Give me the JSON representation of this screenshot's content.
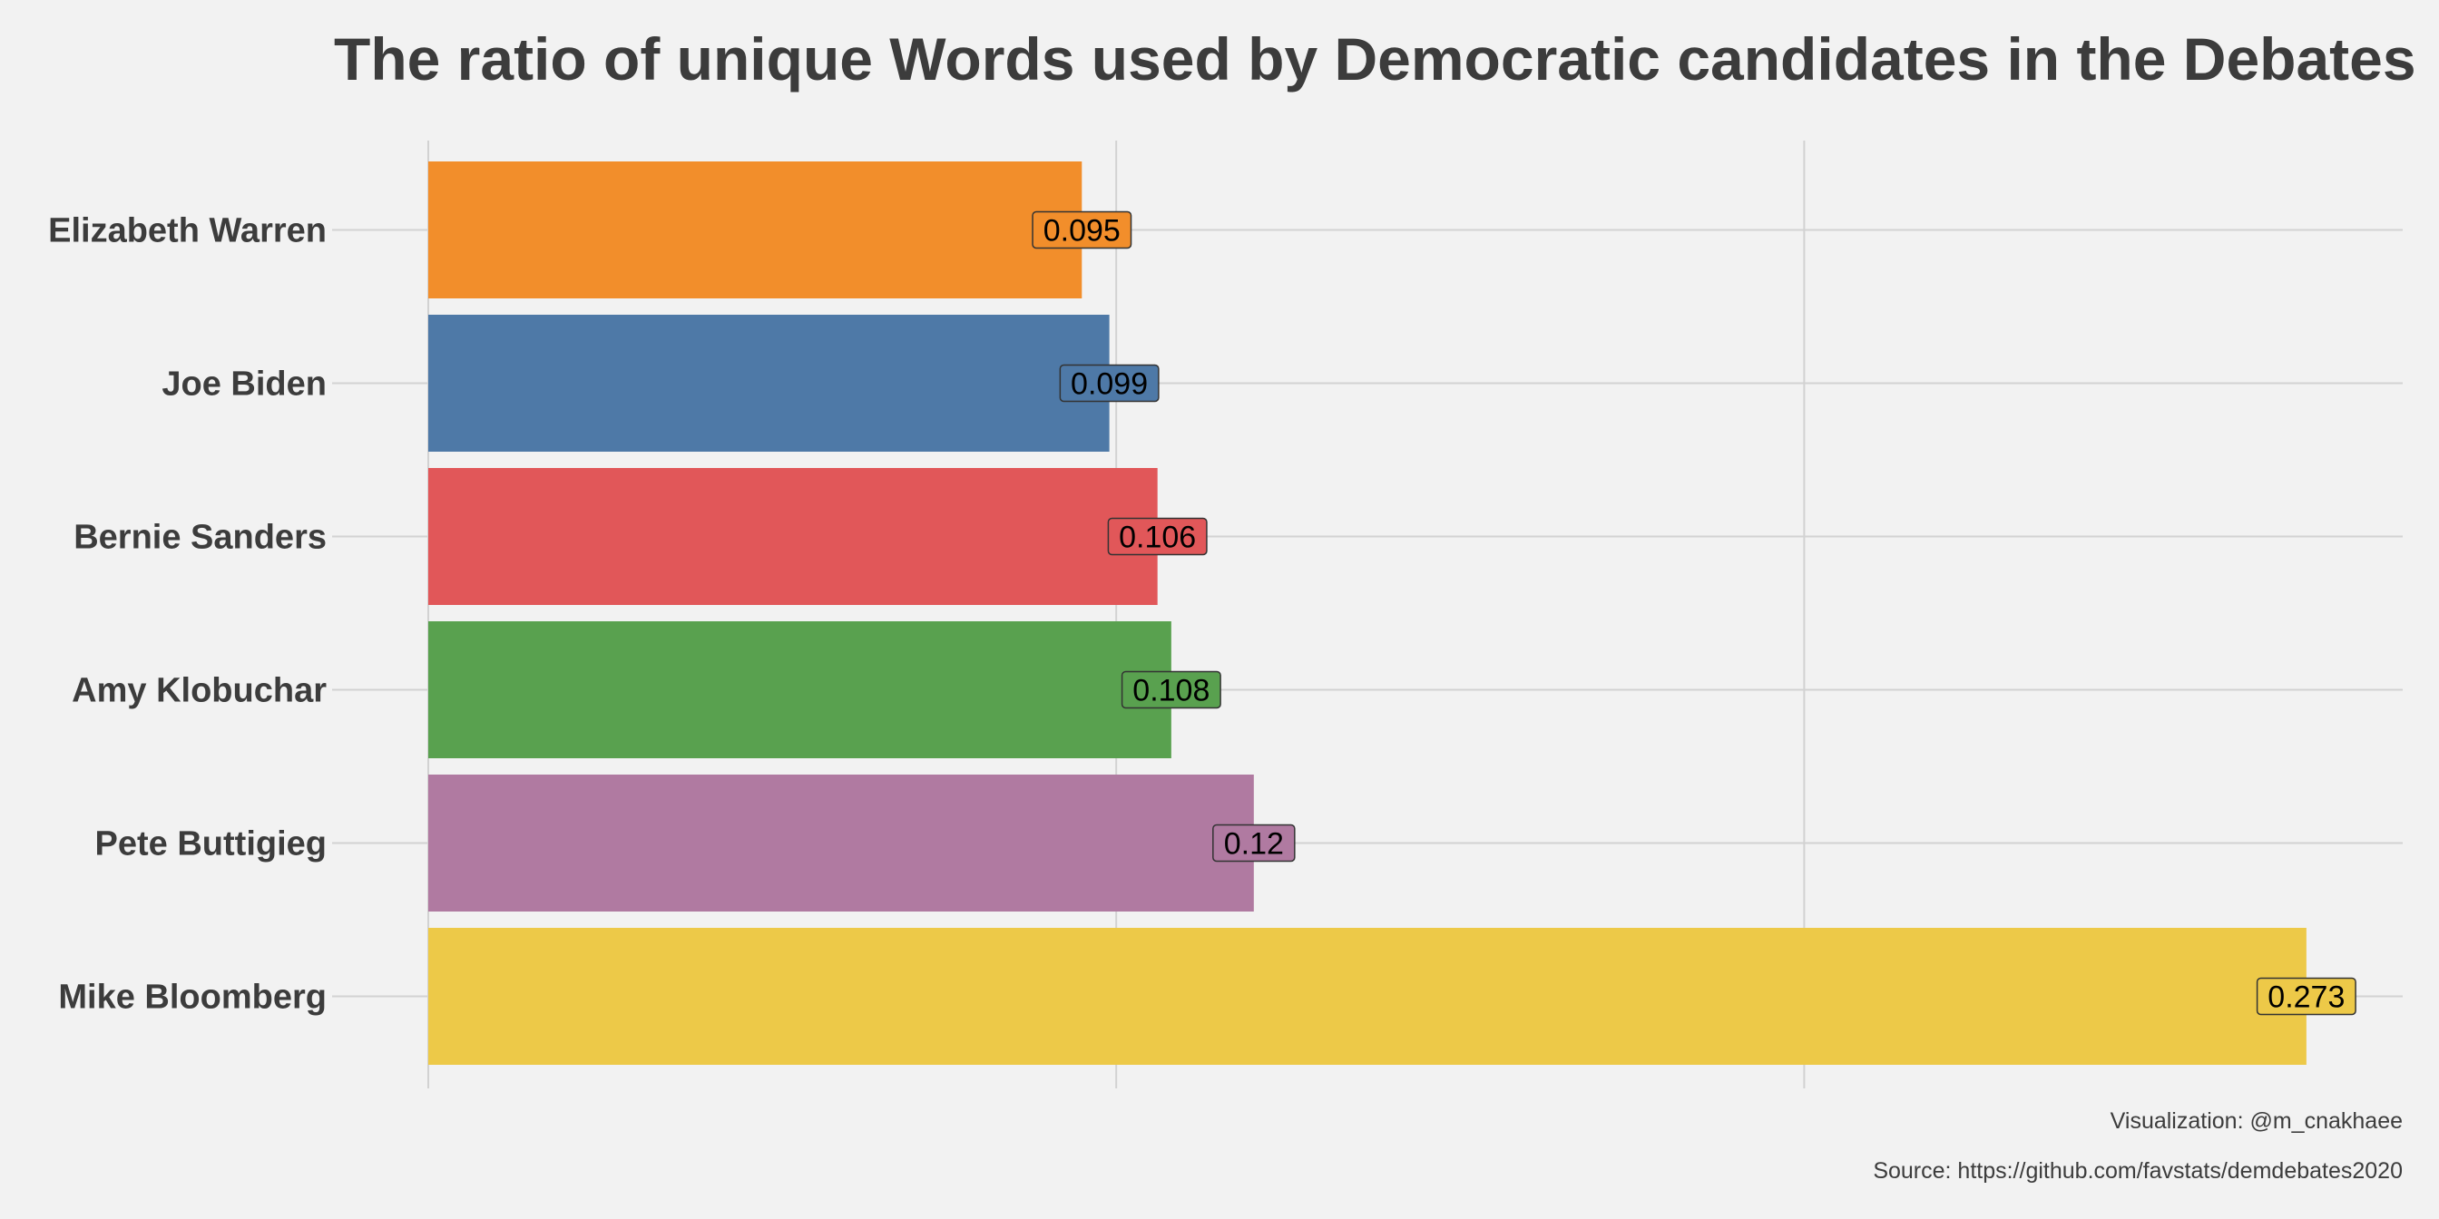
{
  "chart_data": {
    "type": "bar",
    "orientation": "horizontal",
    "title": "The ratio of unique Words used by Democratic candidates in the Debates",
    "xlabel": "",
    "ylabel": "",
    "xlim": [
      0,
      0.287
    ],
    "x_gridlines": [
      0,
      0.1,
      0.2
    ],
    "grid": true,
    "legend": "none",
    "categories": [
      "Elizabeth Warren",
      "Joe Biden",
      "Bernie Sanders",
      "Amy Klobuchar",
      "Pete Buttigieg",
      "Mike Bloomberg"
    ],
    "values": [
      0.095,
      0.099,
      0.106,
      0.108,
      0.12,
      0.273
    ],
    "value_labels": [
      "0.095",
      "0.099",
      "0.106",
      "0.108",
      "0.12",
      "0.273"
    ],
    "colors": [
      "#f28e2b",
      "#4e79a7",
      "#e15759",
      "#59a14f",
      "#b07aa1",
      "#edc948"
    ]
  },
  "captions": {
    "visualization": "Visualization: @m_cnakhaee",
    "source": "Source: https://github.com/favstats/demdebates2020"
  }
}
